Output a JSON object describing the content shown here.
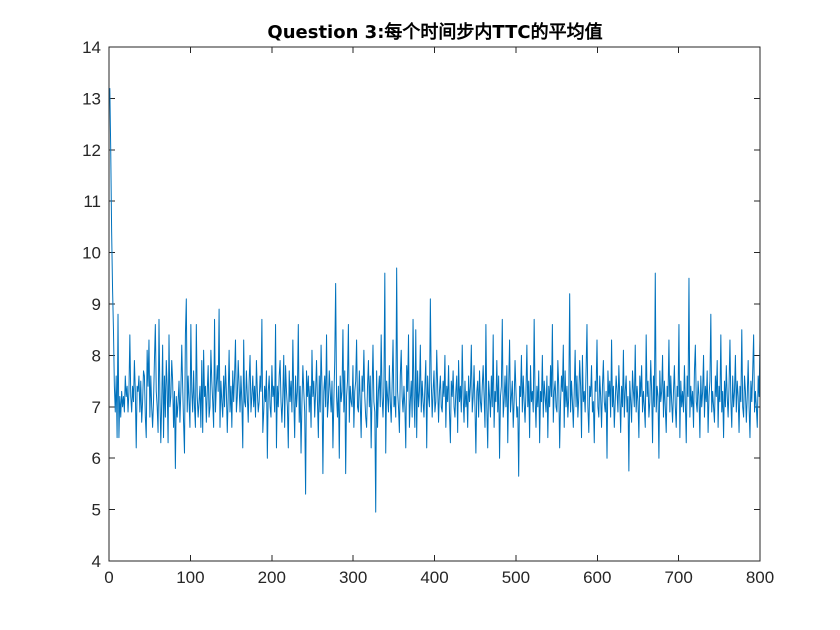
{
  "chart_data": {
    "type": "line",
    "title": "Question 3:每个时间步内TTC的平均值",
    "xlabel": "",
    "ylabel": "",
    "xlim": [
      0,
      800
    ],
    "ylim": [
      4,
      14
    ],
    "xticks": [
      0,
      100,
      200,
      300,
      400,
      500,
      600,
      700,
      800
    ],
    "yticks": [
      4,
      5,
      6,
      7,
      8,
      9,
      10,
      11,
      12,
      13,
      14
    ],
    "grid": false,
    "legend": "none",
    "series": [
      {
        "color": "#0072BD",
        "x_start": 1,
        "x_step": 1,
        "y": [
          13.2,
          12.0,
          10.4,
          9.3,
          8.5,
          7.4,
          6.9,
          7.6,
          6.4,
          8.8,
          6.4,
          7.2,
          6.8,
          7.3,
          7.0,
          7.2,
          6.9,
          7.6,
          7.2,
          7.4,
          6.9,
          7.3,
          8.4,
          7.2,
          6.9,
          7.4,
          7.1,
          7.9,
          7.3,
          6.2,
          7.4,
          7.3,
          7.6,
          6.9,
          7.5,
          6.7,
          7.1,
          7.7,
          7.6,
          6.8,
          6.4,
          8.1,
          7.4,
          8.3,
          6.8,
          7.6,
          7.0,
          6.6,
          7.1,
          7.9,
          8.6,
          7.3,
          7.0,
          6.5,
          8.7,
          7.2,
          6.3,
          7.1,
          8.2,
          6.4,
          7.6,
          6.8,
          7.9,
          7.4,
          6.3,
          8.4,
          7.0,
          7.2,
          7.9,
          7.5,
          6.6,
          7.3,
          5.8,
          7.2,
          6.8,
          7.1,
          7.5,
          6.7,
          7.3,
          8.2,
          7.4,
          6.7,
          6.1,
          8.4,
          9.1,
          6.9,
          7.6,
          7.1,
          6.6,
          8.6,
          7.3,
          6.9,
          7.7,
          7.0,
          6.6,
          8.6,
          7.2,
          6.8,
          7.1,
          7.4,
          6.6,
          7.9,
          6.5,
          8.1,
          7.2,
          7.4,
          6.7,
          7.3,
          7.8,
          6.8,
          7.0,
          8.1,
          7.5,
          7.1,
          6.6,
          8.7,
          6.9,
          7.4,
          7.8,
          7.3,
          8.9,
          6.6,
          7.5,
          7.1,
          6.8,
          7.6,
          7.0,
          7.8,
          7.3,
          6.5,
          7.2,
          8.1,
          6.9,
          7.4,
          6.6,
          7.7,
          7.1,
          7.6,
          8.3,
          6.9,
          7.2,
          7.9,
          7.4,
          6.9,
          7.6,
          7.1,
          6.2,
          8.3,
          7.1,
          7.0,
          7.7,
          7.2,
          6.7,
          7.5,
          8.0,
          6.9,
          7.2,
          7.6,
          7.0,
          7.4,
          6.8,
          7.9,
          7.3,
          6.9,
          7.1,
          7.6,
          7.3,
          8.7,
          6.5,
          6.9,
          7.4,
          7.1,
          7.7,
          6.0,
          7.3,
          7.6,
          7.0,
          6.8,
          7.8,
          7.2,
          7.4,
          6.9,
          8.6,
          6.2,
          7.4,
          7.0,
          7.6,
          7.9,
          7.1,
          6.7,
          7.2,
          8.0,
          6.6,
          7.8,
          7.3,
          7.0,
          6.2,
          7.7,
          7.1,
          7.5,
          6.9,
          8.3,
          7.2,
          6.4,
          7.6,
          7.0,
          7.3,
          8.6,
          6.7,
          7.4,
          6.1,
          7.1,
          7.8,
          7.3,
          6.9,
          5.3,
          7.7,
          7.2,
          7.6,
          6.9,
          7.4,
          6.6,
          8.1,
          7.2,
          7.5,
          6.8,
          7.3,
          7.9,
          7.1,
          6.4,
          7.6,
          6.9,
          8.2,
          7.4,
          5.7,
          7.3,
          7.6,
          7.0,
          8.4,
          6.8,
          7.1,
          7.7,
          7.3,
          6.9,
          7.5,
          6.2,
          7.1,
          7.9,
          9.4,
          7.2,
          6.8,
          7.4,
          6.0,
          7.6,
          7.1,
          7.3,
          8.5,
          6.9,
          7.7,
          5.7,
          7.2,
          7.5,
          8.6,
          6.7,
          7.4,
          7.1,
          7.0,
          7.8,
          6.6,
          7.3,
          7.5,
          8.3,
          7.0,
          6.9,
          7.7,
          7.1,
          6.4,
          7.6,
          7.3,
          8.1,
          7.2,
          6.8,
          6.6,
          7.4,
          7.9,
          7.0,
          7.6,
          6.2,
          7.3,
          8.2,
          7.1,
          6.9,
          4.95,
          7.7,
          6.6,
          7.3,
          7.6,
          7.0,
          8.4,
          7.2,
          6.8,
          7.4,
          9.6,
          6.1,
          7.5,
          7.2,
          6.9,
          7.8,
          7.1,
          6.7,
          7.4,
          8.3,
          7.0,
          7.2,
          6.8,
          9.7,
          7.3,
          7.0,
          6.5,
          7.6,
          8.1,
          7.2,
          6.9,
          7.4,
          7.0,
          6.2,
          7.8,
          7.3,
          8.4,
          6.6,
          7.1,
          7.5,
          6.8,
          8.7,
          7.2,
          6.6,
          8.5,
          6.4,
          7.7,
          7.0,
          7.3,
          8.2,
          6.9,
          7.5,
          7.1,
          6.8,
          7.4,
          7.9,
          6.2,
          7.6,
          7.2,
          7.0,
          9.1,
          7.5,
          6.8,
          7.3,
          7.7,
          6.9,
          7.1,
          8.1,
          7.4,
          6.7,
          7.3,
          7.6,
          7.0,
          6.9,
          7.5,
          7.2,
          8.0,
          6.6,
          7.4,
          7.1,
          7.8,
          6.9,
          6.3,
          7.5,
          7.2,
          7.7,
          7.0,
          6.8,
          7.3,
          7.6,
          6.5,
          7.9,
          7.1,
          7.4,
          6.9,
          8.2,
          7.2,
          6.7,
          7.5,
          7.0,
          7.3,
          6.6,
          7.6,
          7.1,
          7.4,
          8.2,
          6.9,
          7.2,
          7.8,
          7.0,
          6.1,
          7.3,
          7.5,
          6.8,
          7.7,
          7.1,
          6.9,
          7.4,
          7.8,
          7.2,
          6.6,
          8.6,
          7.0,
          6.2,
          7.5,
          7.2,
          6.8,
          7.6,
          7.0,
          8.4,
          6.6,
          7.3,
          7.1,
          7.9,
          6.9,
          7.6,
          6.0,
          7.2,
          7.4,
          8.7,
          6.8,
          7.1,
          7.6,
          7.0,
          7.8,
          6.3,
          7.4,
          8.3,
          6.9,
          7.2,
          7.5,
          6.6,
          7.1,
          7.9,
          7.3,
          6.8,
          7.0,
          5.65,
          7.4,
          7.2,
          8.0,
          6.9,
          7.6,
          7.1,
          6.7,
          7.3,
          8.2,
          7.0,
          7.5,
          6.4,
          7.8,
          7.1,
          7.3,
          6.9,
          8.7,
          7.2,
          6.6,
          7.4,
          7.0,
          7.7,
          6.3,
          7.3,
          7.1,
          8.0,
          6.8,
          7.5,
          7.2,
          6.9,
          7.6,
          6.4,
          7.4,
          7.0,
          7.8,
          7.2,
          8.6,
          6.7,
          7.3,
          7.5,
          7.0,
          6.9,
          7.9,
          7.4,
          6.2,
          7.1,
          7.6,
          7.3,
          8.2,
          6.6,
          7.7,
          7.0,
          7.4,
          6.8,
          7.2,
          9.2,
          6.9,
          7.5,
          7.1,
          6.6,
          7.3,
          8.1,
          7.0,
          7.6,
          6.8,
          7.2,
          7.9,
          7.4,
          6.4,
          8.0,
          7.1,
          7.3,
          6.9,
          7.7,
          8.6,
          7.0,
          6.5,
          7.4,
          7.2,
          7.8,
          6.9,
          7.1,
          6.3,
          7.5,
          7.3,
          8.3,
          7.0,
          6.8,
          7.6,
          7.2,
          6.6,
          7.4,
          7.9,
          7.1,
          6.9,
          7.3,
          6.0,
          7.7,
          7.2,
          7.5,
          6.8,
          8.3,
          7.0,
          7.4,
          6.6,
          7.1,
          7.6,
          7.3,
          6.9,
          7.8,
          7.2,
          6.5,
          7.4,
          7.0,
          8.1,
          6.8,
          7.3,
          7.6,
          6.9,
          7.2,
          5.75,
          7.5,
          7.1,
          6.7,
          7.7,
          7.3,
          7.0,
          8.2,
          6.9,
          7.4,
          7.1,
          6.4,
          7.6,
          7.2,
          7.8,
          6.9,
          7.3,
          7.0,
          6.6,
          8.4,
          7.2,
          7.5,
          6.8,
          7.1,
          7.9,
          7.3,
          6.3,
          7.6,
          7.0,
          9.6,
          6.9,
          7.4,
          7.2,
          6.0,
          7.7,
          7.1,
          7.3,
          8.0,
          6.8,
          7.5,
          7.0,
          6.5,
          7.4,
          7.2,
          8.3,
          6.9,
          7.6,
          7.1,
          6.7,
          7.3,
          7.8,
          7.0,
          6.6,
          7.4,
          7.2,
          8.6,
          6.4,
          7.5,
          7.0,
          7.3,
          6.9,
          7.8,
          7.1,
          6.3,
          7.6,
          7.2,
          9.5,
          6.8,
          7.4,
          7.0,
          7.3,
          6.6,
          7.7,
          8.2,
          7.1,
          6.9,
          7.5,
          7.2,
          6.4,
          7.6,
          7.0,
          7.3,
          8.0,
          6.8,
          7.4,
          7.1,
          7.7,
          6.5,
          7.2,
          7.5,
          8.8,
          6.9,
          7.3,
          7.0,
          6.7,
          7.6,
          7.2,
          7.9,
          6.6,
          7.4,
          7.1,
          8.4,
          6.9,
          7.3,
          6.4,
          7.5,
          7.0,
          7.8,
          7.2,
          6.8,
          7.4,
          8.3,
          7.1,
          6.6,
          7.6,
          7.0,
          7.3,
          8.0,
          6.9,
          7.5,
          7.2,
          6.5,
          7.4,
          7.1,
          8.5,
          7.0,
          6.8,
          7.6,
          7.3,
          6.7,
          7.2,
          7.9,
          7.0,
          6.4,
          7.5,
          7.1,
          7.7,
          8.4,
          6.9,
          7.3,
          7.0,
          6.6,
          7.6,
          7.2,
          8.3
        ]
      }
    ]
  }
}
